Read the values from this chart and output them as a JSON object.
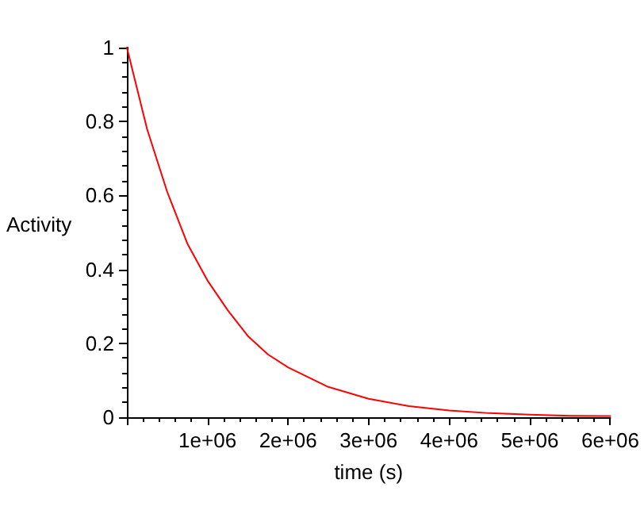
{
  "chart_data": {
    "type": "line",
    "xlabel": "time (s)",
    "ylabel": "Activity",
    "x": [
      0,
      250000,
      500000,
      750000,
      1000000,
      1250000,
      1500000,
      1750000,
      2000000,
      2500000,
      3000000,
      3500000,
      4000000,
      4500000,
      5000000,
      5500000,
      6000000
    ],
    "series": [
      {
        "color": "#ff0000",
        "values": [
          1,
          0.78,
          0.61,
          0.47,
          0.37,
          0.29,
          0.22,
          0.17,
          0.135,
          0.082,
          0.05,
          0.03,
          0.018,
          0.011,
          0.007,
          0.004,
          0.003
        ]
      }
    ],
    "xlim": [
      0,
      6000000
    ],
    "xticks": [
      {
        "value": 0,
        "label": null
      },
      {
        "value": 1000000,
        "label": "1e+06"
      },
      {
        "value": 2000000,
        "label": "2e+06"
      },
      {
        "value": 3000000,
        "label": "3e+06"
      },
      {
        "value": 4000000,
        "label": "4e+06"
      },
      {
        "value": 5000000,
        "label": "5e+06"
      },
      {
        "value": 6000000,
        "label": "6e+06"
      }
    ],
    "ylim": [
      0,
      1
    ],
    "yticks": [
      0,
      0.2,
      0.4,
      0.6,
      0.8,
      1
    ],
    "grid": false,
    "marker": "none",
    "line_style": "solid"
  }
}
